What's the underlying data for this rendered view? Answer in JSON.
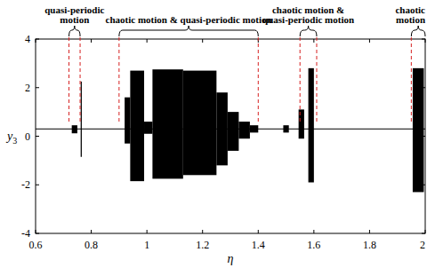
{
  "chart_data": {
    "type": "bifurcation",
    "xlabel": "η",
    "ylabel": "y3",
    "xlim": [
      0.6,
      2.0
    ],
    "ylim": [
      -4,
      4
    ],
    "xticks": [
      0.6,
      0.8,
      1,
      1.2,
      1.4,
      1.6,
      1.8,
      2
    ],
    "yticks": [
      -4,
      -2,
      0,
      2,
      4
    ],
    "color": "#000000",
    "baseline": 0.3,
    "x_start": [
      0.73,
      0.762,
      0.92,
      0.94,
      0.99,
      1.02,
      1.13,
      1.25,
      1.29,
      1.33,
      1.37,
      1.49,
      1.545,
      1.58,
      1.955
    ],
    "x_end": [
      0.75,
      0.766,
      0.94,
      0.99,
      1.02,
      1.13,
      1.25,
      1.29,
      1.33,
      1.37,
      1.4,
      1.51,
      1.565,
      1.6,
      1.995
    ],
    "low": [
      0.12,
      -0.85,
      -0.3,
      -1.85,
      0.1,
      -1.75,
      -1.6,
      -1.2,
      -0.6,
      -0.1,
      0.15,
      0.15,
      -0.1,
      -1.9,
      -2.3
    ],
    "high": [
      0.45,
      2.25,
      1.6,
      2.7,
      0.6,
      2.75,
      2.7,
      1.8,
      1.0,
      0.6,
      0.45,
      0.45,
      1.1,
      2.8,
      2.8
    ],
    "annotations": [
      {
        "lines": [
          "quasi-periodic",
          "motion"
        ],
        "x": [
          0.72,
          0.76
        ]
      },
      {
        "lines": [
          "chaotic motion & quasi-periodic motion"
        ],
        "x": [
          0.9,
          1.4
        ]
      },
      {
        "lines": [
          "chaotic motion &",
          "quasi-periodic motion"
        ],
        "x": [
          1.55,
          1.61
        ]
      },
      {
        "lines": [
          "chaotic",
          "motion"
        ],
        "x": [
          1.95,
          2.0
        ]
      }
    ]
  }
}
